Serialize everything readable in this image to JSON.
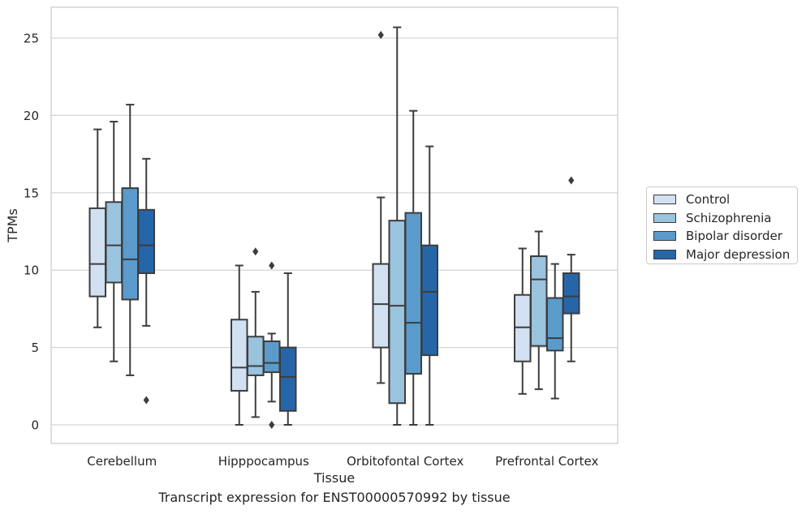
{
  "chart_data": {
    "type": "boxplot",
    "title": "",
    "caption": "Transcript expression for ENST00000570992 by tissue",
    "xlabel": "Tissue",
    "ylabel": "TPMs",
    "ylim": [
      -1.2,
      27
    ],
    "yticks": [
      0,
      5,
      10,
      15,
      20,
      25
    ],
    "grid": "horizontal",
    "legend_position": "right",
    "categories": [
      "Cerebellum",
      "Hipppocampus",
      "Orbitofontal Cortex",
      "Prefrontal Cortex"
    ],
    "series": [
      {
        "name": "Control",
        "color": "#d2e1f1",
        "boxes": [
          {
            "whisker_low": 6.3,
            "q1": 8.3,
            "median": 10.4,
            "q3": 14.0,
            "whisker_high": 19.1,
            "outliers": []
          },
          {
            "whisker_low": 0.0,
            "q1": 2.2,
            "median": 3.7,
            "q3": 6.8,
            "whisker_high": 10.3,
            "outliers": []
          },
          {
            "whisker_low": 2.7,
            "q1": 5.0,
            "median": 7.8,
            "q3": 10.4,
            "whisker_high": 14.7,
            "outliers": [
              25.2
            ]
          },
          {
            "whisker_low": 2.0,
            "q1": 4.1,
            "median": 6.3,
            "q3": 8.4,
            "whisker_high": 11.4,
            "outliers": []
          }
        ]
      },
      {
        "name": "Schizophrenia",
        "color": "#9ac3de",
        "boxes": [
          {
            "whisker_low": 4.1,
            "q1": 9.2,
            "median": 11.6,
            "q3": 14.4,
            "whisker_high": 19.6,
            "outliers": []
          },
          {
            "whisker_low": 0.5,
            "q1": 3.2,
            "median": 3.8,
            "q3": 5.7,
            "whisker_high": 8.6,
            "outliers": [
              11.2
            ]
          },
          {
            "whisker_low": 0.0,
            "q1": 1.4,
            "median": 7.7,
            "q3": 13.2,
            "whisker_high": 25.7,
            "outliers": []
          },
          {
            "whisker_low": 2.3,
            "q1": 5.1,
            "median": 9.4,
            "q3": 10.9,
            "whisker_high": 12.5,
            "outliers": []
          }
        ]
      },
      {
        "name": "Bipolar disorder",
        "color": "#5a9bcb",
        "boxes": [
          {
            "whisker_low": 3.2,
            "q1": 8.1,
            "median": 10.7,
            "q3": 15.3,
            "whisker_high": 20.7,
            "outliers": []
          },
          {
            "whisker_low": 1.5,
            "q1": 3.4,
            "median": 4.0,
            "q3": 5.4,
            "whisker_high": 5.9,
            "outliers": [
              10.3,
              0.0
            ]
          },
          {
            "whisker_low": 0.0,
            "q1": 3.3,
            "median": 6.6,
            "q3": 13.7,
            "whisker_high": 20.3,
            "outliers": []
          },
          {
            "whisker_low": 1.7,
            "q1": 4.8,
            "median": 5.6,
            "q3": 8.2,
            "whisker_high": 10.4,
            "outliers": []
          }
        ]
      },
      {
        "name": "Major depression",
        "color": "#2666a8",
        "boxes": [
          {
            "whisker_low": 6.4,
            "q1": 9.8,
            "median": 11.6,
            "q3": 13.9,
            "whisker_high": 17.2,
            "outliers": [
              1.6
            ]
          },
          {
            "whisker_low": 0.0,
            "q1": 0.9,
            "median": 3.1,
            "q3": 5.0,
            "whisker_high": 9.8,
            "outliers": []
          },
          {
            "whisker_low": 0.0,
            "q1": 4.5,
            "median": 8.6,
            "q3": 11.6,
            "whisker_high": 18.0,
            "outliers": []
          },
          {
            "whisker_low": 4.1,
            "q1": 7.2,
            "median": 8.3,
            "q3": 9.8,
            "whisker_high": 11.0,
            "outliers": [
              15.8
            ]
          }
        ]
      }
    ]
  }
}
